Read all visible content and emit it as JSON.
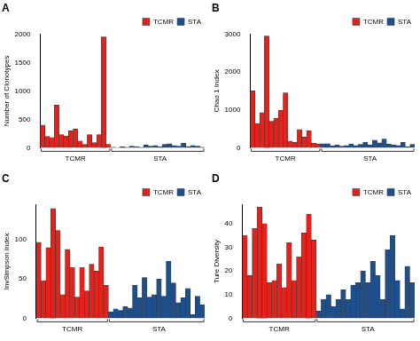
{
  "chart_data": [
    {
      "type": "bar",
      "title": "A",
      "y_label": "Number of Clonotypes",
      "categories": [
        null,
        null,
        null,
        null,
        null,
        null,
        null,
        "TCMR",
        null,
        null,
        null,
        null,
        null,
        null,
        null,
        null,
        null,
        null,
        null,
        null,
        null,
        null,
        null,
        null,
        null,
        "STA",
        null,
        null,
        null,
        null,
        null,
        null,
        null,
        null,
        null
      ],
      "series": [
        {
          "name": "TCMR",
          "color": "#e3221c",
          "values": [
            400,
            200,
            180,
            750,
            230,
            210,
            300,
            330,
            120,
            60,
            230,
            90,
            230,
            1950,
            60,
            null,
            null,
            null,
            null,
            null,
            null,
            null,
            null,
            null,
            null,
            null,
            null,
            null,
            null,
            null,
            null,
            null,
            null,
            null,
            null
          ]
        },
        {
          "name": "STA",
          "color": "#1d4f8f",
          "values": [
            null,
            null,
            null,
            null,
            null,
            null,
            null,
            null,
            null,
            null,
            null,
            null,
            null,
            null,
            null,
            10,
            5,
            15,
            10,
            30,
            20,
            10,
            50,
            30,
            40,
            20,
            60,
            70,
            40,
            30,
            80,
            20,
            40,
            30,
            10
          ]
        }
      ],
      "ylim": [
        0,
        2000
      ],
      "yticks": [
        0,
        500,
        1000,
        1500,
        2000
      ],
      "grid": false,
      "legend": "upper right"
    },
    {
      "type": "bar",
      "title": "B",
      "y_label": "Chao 1 Index",
      "categories": [
        null,
        null,
        null,
        null,
        null,
        null,
        null,
        "TCMR",
        null,
        null,
        null,
        null,
        null,
        null,
        null,
        null,
        null,
        null,
        null,
        null,
        null,
        null,
        null,
        null,
        null,
        "STA",
        null,
        null,
        null,
        null,
        null,
        null,
        null,
        null,
        null
      ],
      "series": [
        {
          "name": "TCMR",
          "color": "#e3221c",
          "values": [
            1500,
            640,
            930,
            2950,
            700,
            780,
            990,
            1450,
            180,
            140,
            480,
            280,
            450,
            120,
            100,
            null,
            null,
            null,
            null,
            null,
            null,
            null,
            null,
            null,
            null,
            null,
            null,
            null,
            null,
            null,
            null,
            null,
            null,
            null,
            null
          ]
        },
        {
          "name": "STA",
          "color": "#1d4f8f",
          "values": [
            null,
            null,
            null,
            null,
            null,
            null,
            null,
            null,
            null,
            null,
            null,
            null,
            null,
            null,
            null,
            110,
            110,
            50,
            80,
            40,
            60,
            100,
            60,
            90,
            150,
            80,
            200,
            130,
            230,
            100,
            80,
            60,
            140,
            30,
            90
          ]
        }
      ],
      "ylim": [
        0,
        3000
      ],
      "yticks": [
        0,
        1000,
        2000,
        3000
      ],
      "grid": false,
      "legend": "upper right"
    },
    {
      "type": "bar",
      "title": "C",
      "y_label": "InvSimpson Index",
      "categories": [
        null,
        null,
        null,
        null,
        null,
        null,
        null,
        "TCMR",
        null,
        null,
        null,
        null,
        null,
        null,
        null,
        null,
        null,
        null,
        null,
        null,
        null,
        null,
        null,
        null,
        null,
        "STA",
        null,
        null,
        null,
        null,
        null,
        null,
        null,
        null,
        null
      ],
      "series": [
        {
          "name": "TCMR",
          "color": "#e3221c",
          "values": [
            97,
            48,
            90,
            140,
            112,
            30,
            88,
            65,
            27,
            65,
            35,
            69,
            60,
            91,
            42,
            null,
            null,
            null,
            null,
            null,
            null,
            null,
            null,
            null,
            null,
            null,
            null,
            null,
            null,
            null,
            null,
            null,
            null,
            null,
            null
          ]
        },
        {
          "name": "STA",
          "color": "#1d4f8f",
          "values": [
            null,
            null,
            null,
            null,
            null,
            null,
            null,
            null,
            null,
            null,
            null,
            null,
            null,
            null,
            null,
            8,
            12,
            10,
            15,
            13,
            42,
            26,
            52,
            27,
            30,
            50,
            28,
            73,
            45,
            20,
            26,
            38,
            5,
            28,
            17
          ]
        }
      ],
      "ylim": [
        0,
        145
      ],
      "yticks": [
        0,
        50,
        100
      ],
      "grid": false,
      "legend": "upper right"
    },
    {
      "type": "bar",
      "title": "D",
      "y_label": "Ture Diversity",
      "categories": [
        null,
        null,
        null,
        null,
        null,
        null,
        null,
        "TCMR",
        null,
        null,
        null,
        null,
        null,
        null,
        null,
        null,
        null,
        null,
        null,
        null,
        null,
        null,
        null,
        null,
        null,
        "STA",
        null,
        null,
        null,
        null,
        null,
        null,
        null,
        null,
        null
      ],
      "series": [
        {
          "name": "TCMR",
          "color": "#e3221c",
          "values": [
            35,
            18,
            38,
            47,
            40,
            15,
            16,
            23,
            13,
            32,
            16,
            26,
            36,
            44,
            33,
            null,
            null,
            null,
            null,
            null,
            null,
            null,
            null,
            null,
            null,
            null,
            null,
            null,
            null,
            null,
            null,
            null,
            null,
            null,
            null
          ]
        },
        {
          "name": "STA",
          "color": "#1d4f8f",
          "values": [
            null,
            null,
            null,
            null,
            null,
            null,
            null,
            null,
            null,
            null,
            null,
            null,
            null,
            null,
            null,
            3,
            8,
            10,
            5,
            8,
            12,
            8,
            14,
            15,
            20,
            15,
            24,
            18,
            8,
            29,
            35,
            16,
            4,
            22,
            15
          ]
        }
      ],
      "ylim": [
        0,
        48
      ],
      "yticks": [
        0,
        10,
        20,
        30,
        40
      ],
      "grid": false,
      "legend": "upper right"
    }
  ]
}
